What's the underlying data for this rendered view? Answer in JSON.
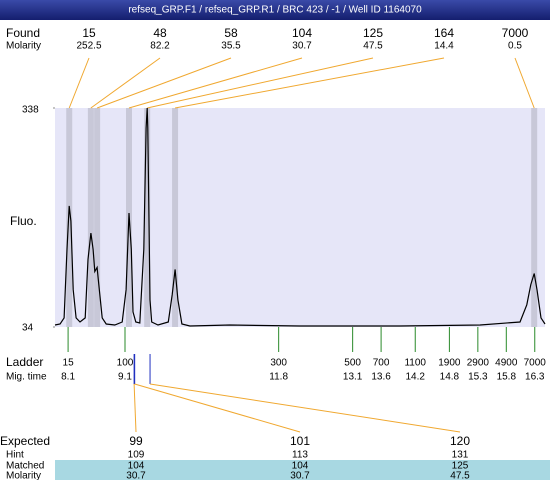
{
  "title": "refseq_GRP.F1 / refseq_GRP.R1 / BRC 423 / -1 / Well ID 1164070",
  "found": {
    "label": "Found",
    "molarity_label": "Molarity",
    "sizes": [
      15,
      48,
      58,
      104,
      125,
      164,
      7000
    ],
    "molarity": [
      252.5,
      82.2,
      35.5,
      30.7,
      47.5,
      14.4,
      0.5
    ],
    "times": [
      8.12,
      8.5,
      8.61,
      9.17,
      9.49,
      9.98,
      16.29
    ]
  },
  "chart_data": {
    "type": "line",
    "y_label": "Fluo.",
    "x": [
      7.87,
      7.96,
      8.03,
      8.08,
      8.12,
      8.15,
      8.19,
      8.24,
      8.31,
      8.4,
      8.45,
      8.5,
      8.54,
      8.57,
      8.61,
      8.64,
      8.7,
      8.77,
      8.92,
      9.05,
      9.12,
      9.17,
      9.21,
      9.24,
      9.29,
      9.36,
      9.43,
      9.47,
      9.49,
      9.5,
      9.54,
      9.57,
      9.68,
      9.86,
      9.93,
      9.98,
      10.03,
      10.1,
      10.24,
      10.94,
      12.17,
      13.93,
      15.34,
      16.04,
      16.16,
      16.23,
      16.29,
      16.34,
      16.41,
      16.48
    ],
    "values": [
      36.8,
      38.2,
      46.6,
      141.9,
      202.1,
      181.1,
      85.8,
      46.6,
      41,
      46.6,
      127.9,
      164.3,
      141.9,
      111.1,
      116.7,
      92.8,
      46.6,
      38.2,
      36.8,
      41,
      85.8,
      192.3,
      141.9,
      55,
      41,
      39.6,
      141.9,
      310,
      338,
      310,
      71.8,
      41,
      36.8,
      41,
      78.8,
      113.9,
      71.8,
      38.2,
      35.4,
      36.8,
      35.4,
      35.4,
      36.8,
      41,
      64.8,
      92.8,
      108.3,
      85.8,
      46.6,
      38.2
    ],
    "xlim": [
      7.87,
      16.48
    ],
    "ylim": [
      34,
      338
    ],
    "yticks": [
      338,
      34
    ],
    "color": "#000000",
    "band_color": "#c8c8d8",
    "background": "#e6e6f8"
  },
  "ladder": {
    "label": "Ladder",
    "time_label": "Mig. time",
    "sizes": [
      15,
      100,
      300,
      500,
      700,
      1100,
      1900,
      2900,
      4900,
      7000
    ],
    "times": [
      8.1,
      9.1,
      11.8,
      13.1,
      13.6,
      14.2,
      14.8,
      15.3,
      15.8,
      16.3
    ]
  },
  "expected": {
    "label": "Expected",
    "sizes": [
      99,
      101,
      120
    ],
    "times": [
      9.26,
      9.27,
      9.54
    ]
  },
  "hint": {
    "label": "Hint",
    "values": [
      109,
      113,
      131
    ]
  },
  "matched": {
    "label": "Matched",
    "values": [
      104,
      104,
      125
    ]
  },
  "molarity": {
    "label": "Molarity",
    "values": [
      30.7,
      30.7,
      47.5
    ]
  }
}
